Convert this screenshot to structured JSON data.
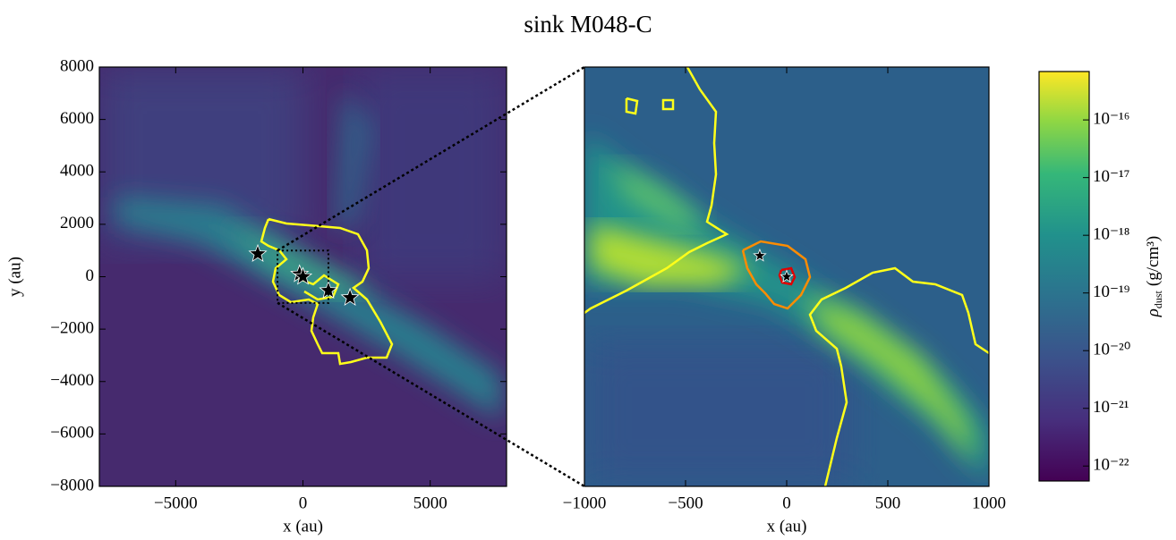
{
  "title": "sink M048-C",
  "chart_data": [
    {
      "type": "image",
      "xlabel": "x (au)",
      "ylabel": "y (au)",
      "xlim": [
        -8000,
        8000
      ],
      "ylim": [
        -8000,
        8000
      ],
      "xticks": [
        {
          "value": -5000,
          "label": "−5000"
        },
        0,
        5000
      ],
      "yticks": [
        {
          "value": -8000,
          "label": "−8000"
        },
        {
          "value": -6000,
          "label": "−6000"
        },
        {
          "value": -4000,
          "label": "−4000"
        },
        {
          "value": -2000,
          "label": "−2000"
        },
        0,
        2000,
        4000,
        6000,
        8000
      ],
      "sinks": {
        "x": [
          -1775,
          -133,
          0,
          1000,
          1850
        ],
        "y": [
          870,
          100,
          0,
          -530,
          -800
        ]
      }
    },
    {
      "type": "image",
      "xlabel": "x (au)",
      "xlim": [
        -1000,
        1000
      ],
      "ylim": [
        -1000,
        1000
      ],
      "xticks": [
        {
          "value": -1000,
          "label": "−1000"
        },
        {
          "value": -500,
          "label": "−500"
        },
        0,
        500,
        1000
      ],
      "sinks": {
        "x": [
          -133,
          0
        ],
        "y": [
          100,
          0
        ]
      }
    }
  ],
  "colorbar": {
    "label": {
      "symbol": "ρ",
      "subscript": "dust",
      "unit": "(g/cm³)"
    },
    "log": true,
    "lim": [
      5.5e-23,
      6.9e-16
    ],
    "ticks": [
      {
        "value": 1e-22,
        "label": "10⁻²²"
      },
      {
        "value": 1e-21,
        "label": "10⁻²¹"
      },
      {
        "value": 1e-20,
        "label": "10⁻²⁰"
      },
      {
        "value": 1e-19,
        "label": "10⁻¹⁹"
      },
      {
        "value": 1e-18,
        "label": "10⁻¹⁸"
      },
      {
        "value": 1e-17,
        "label": "10⁻¹⁷"
      },
      {
        "value": 1e-16,
        "label": "10⁻¹⁶"
      }
    ]
  }
}
